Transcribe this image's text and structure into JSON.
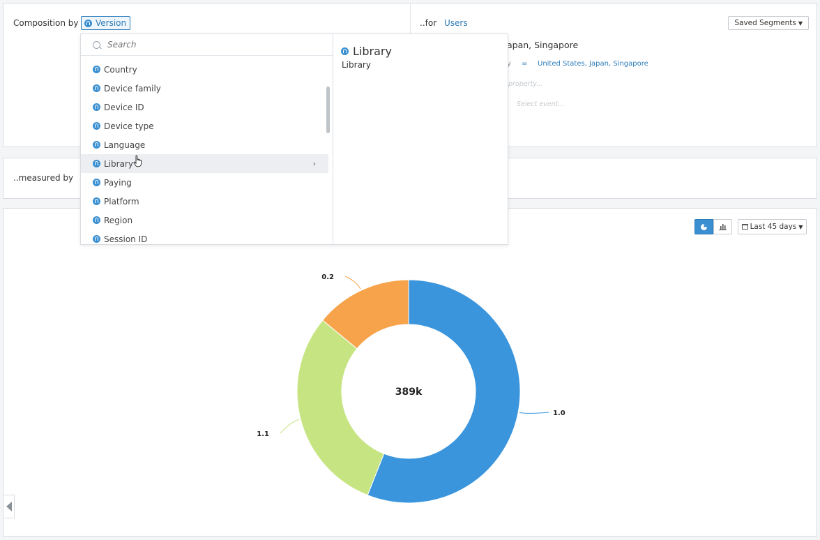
{
  "composition": {
    "label": "Composition by",
    "property": "Version"
  },
  "segment": {
    "label": "..for",
    "target": "Users",
    "saved_segments": "Saved Segments",
    "title_partial": "apan, Singapore",
    "condition_prop_partial": "y",
    "operator": "=",
    "condition_values": "United States, Japan, Singapore",
    "add_property_partial": "property...",
    "select_event": "Select event..."
  },
  "measure": {
    "label": "..measured by"
  },
  "dropdown": {
    "search_placeholder": "Search",
    "items": [
      {
        "label": "Country"
      },
      {
        "label": "Device family"
      },
      {
        "label": "Device ID"
      },
      {
        "label": "Device type"
      },
      {
        "label": "Language"
      },
      {
        "label": "Library"
      },
      {
        "label": "Paying"
      },
      {
        "label": "Platform"
      },
      {
        "label": "Region"
      },
      {
        "label": "Session ID"
      }
    ],
    "active_item": "Library",
    "detail_title": "Library",
    "detail_subtitle": "Library"
  },
  "toolbar": {
    "pie_icon": "pie-chart-icon",
    "bar_icon": "bar-chart-icon",
    "date_range": "Last 45 days"
  },
  "colors": {
    "accent": "#3a8fd1",
    "link": "#2b7bb9"
  },
  "chart_data": {
    "type": "pie",
    "center_label": "389k",
    "slices": [
      {
        "label": "1.0",
        "share": 0.56,
        "color": "#3a95dc"
      },
      {
        "label": "1.1",
        "share": 0.3,
        "color": "#c6e582"
      },
      {
        "label": "0.2",
        "share": 0.14,
        "color": "#f7a34b"
      }
    ]
  }
}
